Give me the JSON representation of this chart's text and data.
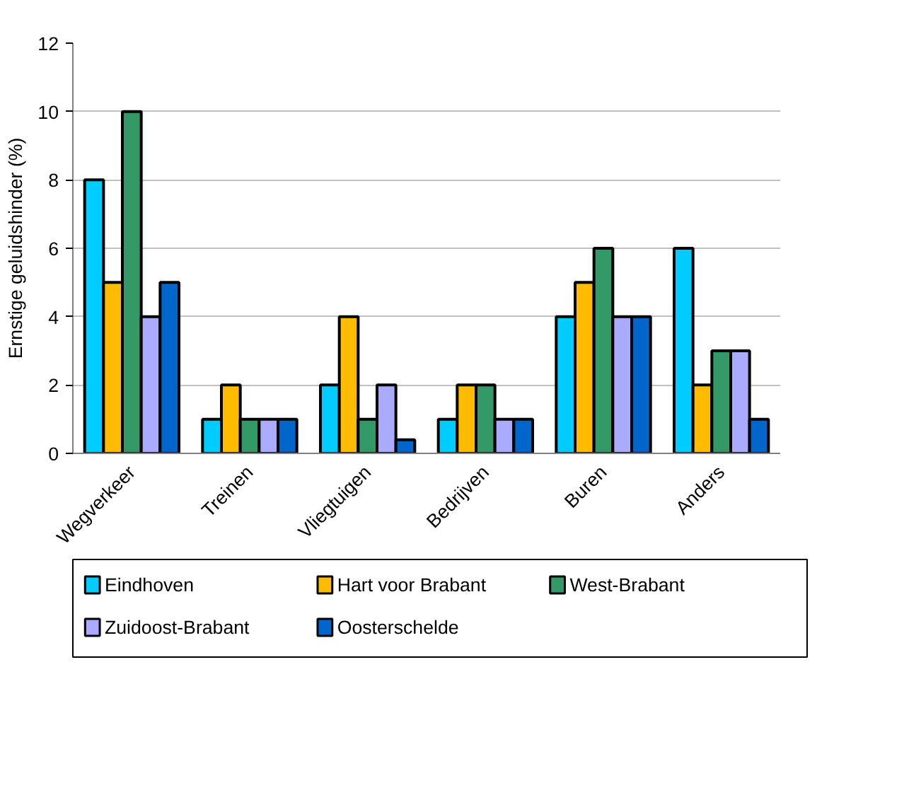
{
  "chart_data": {
    "type": "bar",
    "ylabel": "Ernstige geluidshinder (%)",
    "categories": [
      "Wegverkeer",
      "Treinen",
      "Vliegtuigen",
      "Bedrijven",
      "Buren",
      "Anders"
    ],
    "series": [
      {
        "name": "Eindhoven",
        "color": "#00ccff",
        "values": [
          8,
          1,
          2,
          1,
          4,
          6
        ]
      },
      {
        "name": "Hart voor Brabant",
        "color": "#ffbb00",
        "values": [
          5,
          2,
          4,
          2,
          5,
          2
        ]
      },
      {
        "name": "West-Brabant",
        "color": "#339966",
        "values": [
          10,
          1,
          1,
          2,
          6,
          3
        ]
      },
      {
        "name": "Zuidoost-Brabant",
        "color": "#aaaaff",
        "values": [
          4,
          1,
          2,
          1,
          4,
          3
        ]
      },
      {
        "name": "Oosterschelde",
        "color": "#0066cc",
        "values": [
          5,
          1,
          0.4,
          1,
          4,
          1
        ]
      }
    ],
    "ylim": [
      0,
      12
    ],
    "yticks": [
      0,
      2,
      4,
      6,
      8,
      10,
      12
    ],
    "grid": "y",
    "legend": "bottom"
  }
}
